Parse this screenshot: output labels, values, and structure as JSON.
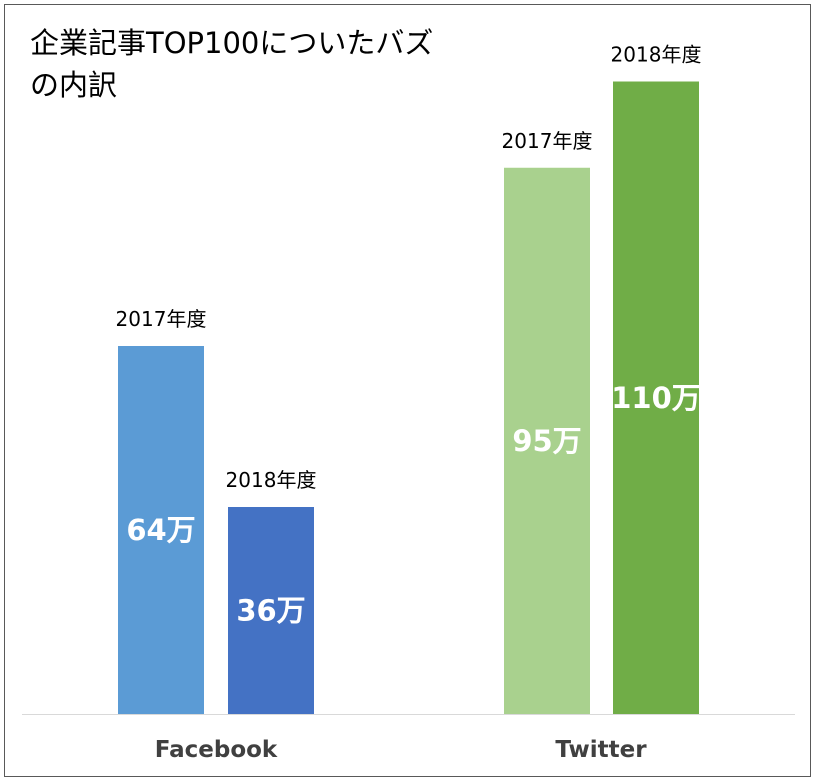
{
  "chart_data": {
    "type": "bar",
    "title": "企業記事TOP100についたバズの内訳",
    "categories": [
      "Facebook",
      "Twitter"
    ],
    "series_labels": [
      "2017年度",
      "2018年度"
    ],
    "unit": "万",
    "values": [
      [
        64,
        36
      ],
      [
        95,
        110
      ]
    ],
    "colors": [
      [
        "#5b9bd5",
        "#4472c4"
      ],
      [
        "#a9d18e",
        "#70ad47"
      ]
    ],
    "ylim": [
      0,
      125
    ],
    "grid": false,
    "legend": "none"
  }
}
